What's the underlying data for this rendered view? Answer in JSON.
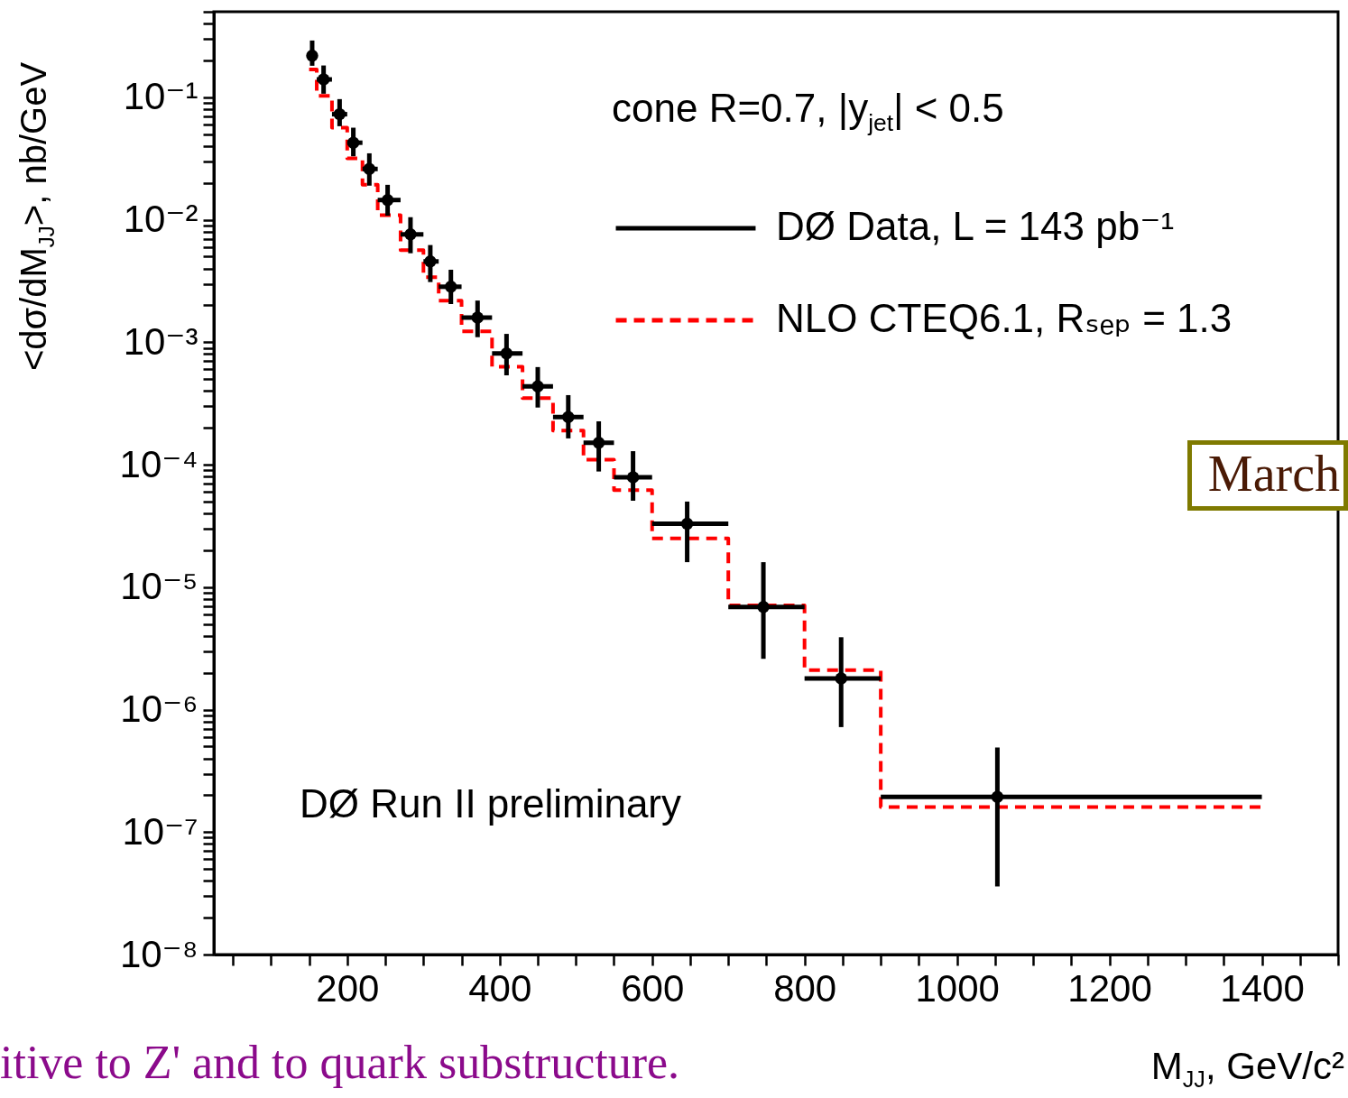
{
  "chart_data": {
    "type": "scatter",
    "xlabel": "M$_{JJ}$, GeV/c²",
    "ylabel": "<dσ/dM$_{JJ}$>, nb/GeV",
    "annotations": [
      "cone R=0.7, |y$_{jet}$| < 0.5",
      "DØ Run II preliminary",
      "March",
      "itive to Z' and to quark substructure."
    ],
    "series": [
      {
        "name": "DØ Data, L = 143 pb⁻¹",
        "type": "scatter",
        "color": "#000000",
        "marker": "circle",
        "x": [
          154,
          169,
          190,
          208,
          229,
          253,
          283,
          309,
          336,
          371,
          409,
          450,
          490,
          530,
          575,
          646,
          746,
          848,
          1053
        ],
        "values": [
          0.219,
          0.14,
          0.0728,
          0.0426,
          0.026,
          0.0145,
          0.0076,
          0.00457,
          0.00284,
          0.00159,
          0.00081,
          0.000436,
          0.000245,
          0.000151,
          7.9e-05,
          3.3e-05,
          6.9e-06,
          1.8e-06,
          1.94e-07
        ],
        "errors": [
          [
            0.181,
            0.291
          ],
          [
            0.107,
            0.182
          ],
          [
            0.0581,
            0.0967
          ],
          [
            0.033,
            0.0565
          ],
          [
            0.019,
            0.0349
          ],
          [
            0.0108,
            0.0193
          ],
          [
            0.00533,
            0.0105
          ],
          [
            0.0031,
            0.00622
          ],
          [
            0.00205,
            0.00391
          ],
          [
            0.0011,
            0.00219
          ],
          [
            0.000537,
            0.00117
          ],
          [
            0.000293,
            0.000627
          ],
          [
            0.000164,
            0.00037
          ],
          [
            8.8e-05,
            0.000226
          ],
          [
            5.08e-05,
            0.000129
          ],
          [
            1.6e-05,
            5e-05
          ],
          [
            2.6e-06,
            1.6e-05
          ],
          [
            7.2e-07,
            3.9e-06
          ],
          [
            3.6e-08,
            4.9e-07
          ]
        ],
        "xerrors": [
          [
            150,
            160
          ],
          [
            160,
            180
          ],
          [
            180,
            200
          ],
          [
            200,
            220
          ],
          [
            220,
            240
          ],
          [
            240,
            270
          ],
          [
            270,
            300
          ],
          [
            300,
            320
          ],
          [
            320,
            350
          ],
          [
            350,
            390
          ],
          [
            390,
            430
          ],
          [
            430,
            470
          ],
          [
            470,
            510
          ],
          [
            510,
            550
          ],
          [
            550,
            600
          ],
          [
            600,
            700
          ],
          [
            700,
            800
          ],
          [
            800,
            900
          ],
          [
            900,
            1400
          ]
        ]
      },
      {
        "name": "NLO CTEQ6.1, Rₛₑₚ = 1.3",
        "type": "step",
        "color": "#ff0000",
        "line_style": "dashed",
        "x": [
          150,
          160,
          180,
          200,
          220,
          240,
          270,
          300,
          320,
          350,
          390,
          430,
          470,
          510,
          550,
          600,
          700,
          800,
          900,
          1400
        ],
        "values": [
          0.169,
          0.103,
          0.0565,
          0.0317,
          0.0193,
          0.0109,
          0.00565,
          0.0034,
          0.00219,
          0.00123,
          0.00063,
          0.00035,
          0.00019,
          0.00011,
          6.2e-05,
          2.5e-05,
          7.1e-06,
          2.1e-06,
          1.6e-07,
          1.6e-07
        ]
      }
    ],
    "xlim": [
      25,
      1500
    ],
    "xticks": [
      {
        "value": 50,
        "label": null
      },
      {
        "value": 100,
        "label": null
      },
      {
        "value": 150,
        "label": null
      },
      200,
      {
        "value": 250,
        "label": null
      },
      {
        "value": 300,
        "label": null
      },
      {
        "value": 350,
        "label": null
      },
      400,
      {
        "value": 450,
        "label": null
      },
      {
        "value": 500,
        "label": null
      },
      {
        "value": 550,
        "label": null
      },
      600,
      {
        "value": 650,
        "label": null
      },
      {
        "value": 700,
        "label": null
      },
      {
        "value": 750,
        "label": null
      },
      800,
      {
        "value": 850,
        "label": null
      },
      {
        "value": 900,
        "label": null
      },
      {
        "value": 950,
        "label": null
      },
      1000,
      {
        "value": 1050,
        "label": null
      },
      {
        "value": 1100,
        "label": null
      },
      {
        "value": 1150,
        "label": null
      },
      1200,
      {
        "value": 1250,
        "label": null
      },
      {
        "value": 1300,
        "label": null
      },
      {
        "value": 1350,
        "label": null
      },
      1400,
      {
        "value": 1450,
        "label": null
      },
      {
        "value": 1500,
        "label": null
      }
    ],
    "ylim": [
      1e-08,
      0.5
    ],
    "yticks": [
      {
        "value": 1e-08,
        "label": "10⁻⁸"
      },
      {
        "value": 2e-08,
        "label": null
      },
      {
        "value": 3e-08,
        "label": null
      },
      {
        "value": 4e-08,
        "label": null
      },
      {
        "value": 5e-08,
        "label": null
      },
      {
        "value": 6e-08,
        "label": null
      },
      {
        "value": 7e-08,
        "label": null
      },
      {
        "value": 8e-08,
        "label": null
      },
      {
        "value": 9e-08,
        "label": null
      },
      {
        "value": 1e-07,
        "label": "10⁻⁷"
      },
      {
        "value": 2e-07,
        "label": null
      },
      {
        "value": 3e-07,
        "label": null
      },
      {
        "value": 4e-07,
        "label": null
      },
      {
        "value": 5e-07,
        "label": null
      },
      {
        "value": 6e-07,
        "label": null
      },
      {
        "value": 7e-07,
        "label": null
      },
      {
        "value": 8e-07,
        "label": null
      },
      {
        "value": 9e-07,
        "label": null
      },
      {
        "value": 1e-06,
        "label": "10⁻⁶"
      },
      {
        "value": 2e-06,
        "label": null
      },
      {
        "value": 3e-06,
        "label": null
      },
      {
        "value": 4e-06,
        "label": null
      },
      {
        "value": 5e-06,
        "label": null
      },
      {
        "value": 6e-06,
        "label": null
      },
      {
        "value": 7e-06,
        "label": null
      },
      {
        "value": 8e-06,
        "label": null
      },
      {
        "value": 9e-06,
        "label": null
      },
      {
        "value": 1e-05,
        "label": "10⁻⁵"
      },
      {
        "value": 2e-05,
        "label": null
      },
      {
        "value": 3e-05,
        "label": null
      },
      {
        "value": 4e-05,
        "label": null
      },
      {
        "value": 5e-05,
        "label": null
      },
      {
        "value": 6e-05,
        "label": null
      },
      {
        "value": 7e-05,
        "label": null
      },
      {
        "value": 8e-05,
        "label": null
      },
      {
        "value": 9e-05,
        "label": null
      },
      {
        "value": 0.0001,
        "label": "10⁻⁴"
      },
      {
        "value": 0.0002,
        "label": null
      },
      {
        "value": 0.0003,
        "label": null
      },
      {
        "value": 0.0004,
        "label": null
      },
      {
        "value": 0.0005,
        "label": null
      },
      {
        "value": 0.0006,
        "label": null
      },
      {
        "value": 0.0007,
        "label": null
      },
      {
        "value": 0.0008,
        "label": null
      },
      {
        "value": 0.0009,
        "label": null
      },
      {
        "value": 0.001,
        "label": "10⁻³"
      },
      {
        "value": 0.002,
        "label": null
      },
      {
        "value": 0.003,
        "label": null
      },
      {
        "value": 0.004,
        "label": null
      },
      {
        "value": 0.005,
        "label": null
      },
      {
        "value": 0.006,
        "label": null
      },
      {
        "value": 0.007,
        "label": null
      },
      {
        "value": 0.008,
        "label": null
      },
      {
        "value": 0.009,
        "label": null
      },
      {
        "value": 0.01,
        "label": "10⁻²"
      },
      {
        "value": 0.02,
        "label": null
      },
      {
        "value": 0.03,
        "label": null
      },
      {
        "value": 0.04,
        "label": null
      },
      {
        "value": 0.05,
        "label": null
      },
      {
        "value": 0.06,
        "label": null
      },
      {
        "value": 0.07,
        "label": null
      },
      {
        "value": 0.08,
        "label": null
      },
      {
        "value": 0.09,
        "label": null
      },
      {
        "value": 0.1,
        "label": "10⁻¹"
      },
      {
        "value": 0.2,
        "label": null
      },
      {
        "value": 0.3,
        "label": null
      },
      {
        "value": 0.4,
        "label": null
      },
      {
        "value": 0.5,
        "label": null
      }
    ],
    "log": "y",
    "grid": false,
    "legend": "top right"
  }
}
